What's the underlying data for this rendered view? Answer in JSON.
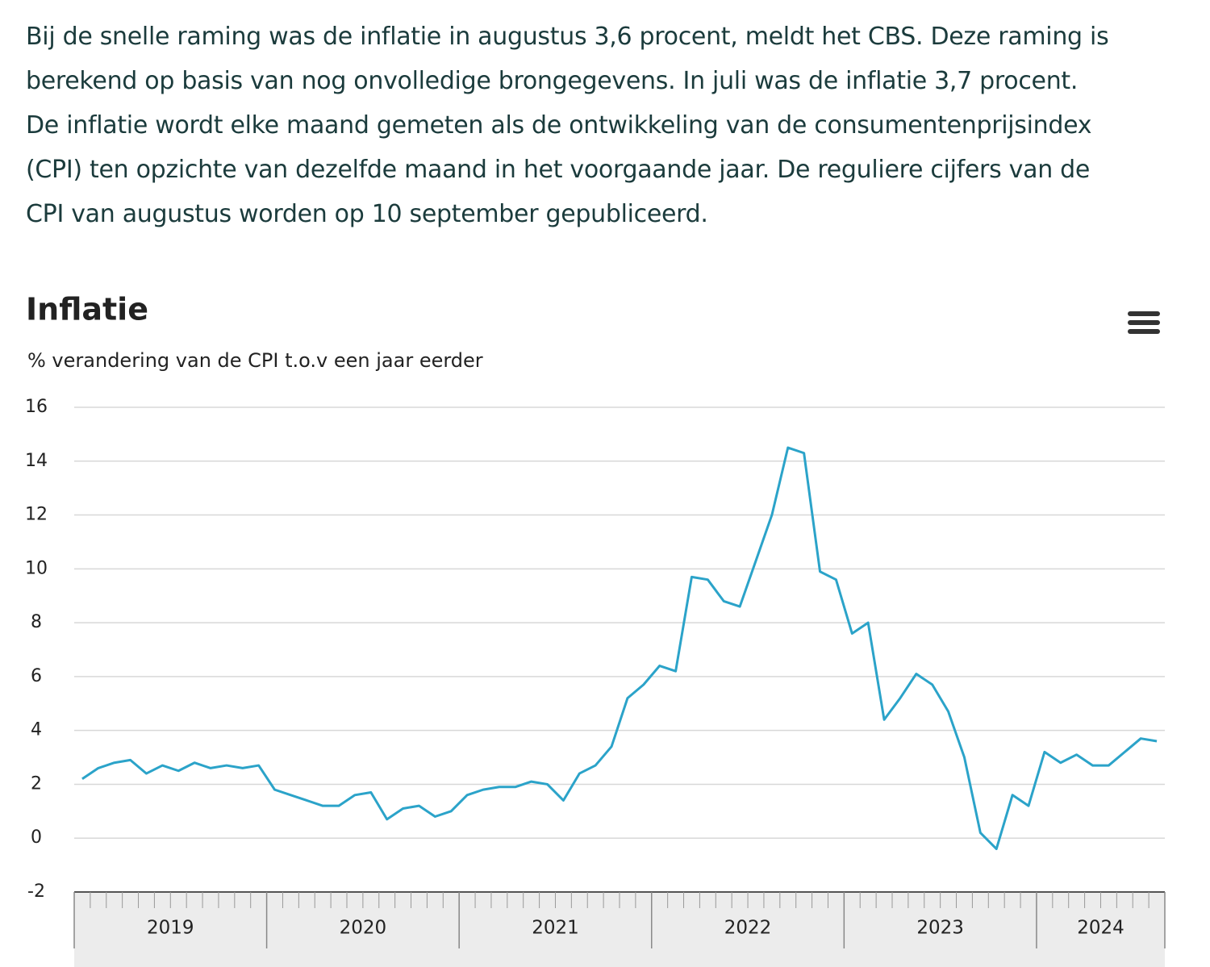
{
  "paragraph": [
    "Bij de snelle raming was de inflatie in augustus 3,6 procent, meldt het CBS. Deze raming is",
    "berekend op basis van nog onvolledige brongegevens. In juli was de inflatie 3,7 procent.",
    "De inflatie wordt elke maand gemeten als de ontwikkeling van de consumentenprijsindex",
    "(CPI) ten opzichte van dezelfde maand in het voorgaande jaar. De reguliere cijfers van de",
    "CPI van augustus worden op 10 september gepubliceerd."
  ],
  "chart_data": {
    "type": "line",
    "title": "Inflatie",
    "subtitle": "% verandering van de CPI t.o.v een jaar eerder",
    "categories": [
      null,
      null,
      null,
      null,
      null,
      null,
      null,
      null,
      null,
      null,
      null,
      null,
      null,
      null,
      null,
      null,
      null,
      null,
      null,
      null,
      null,
      null,
      null,
      null,
      null,
      null,
      null,
      null,
      null,
      null,
      null,
      null,
      null,
      null,
      null,
      null,
      null,
      null,
      null,
      null,
      null,
      null,
      null,
      null,
      null,
      null,
      null,
      null,
      null,
      null,
      null,
      null,
      null,
      null,
      null,
      null,
      null,
      null,
      null,
      null,
      null,
      null,
      null,
      null,
      null,
      null,
      null,
      null
    ],
    "year_labels": [
      "2019",
      "2020",
      "2021",
      "2022",
      "2023",
      "2024"
    ],
    "series": [
      {
        "name": "Inflatie",
        "color": "#2ba3c9",
        "values": [
          2.2,
          2.6,
          2.8,
          2.9,
          2.4,
          2.7,
          2.5,
          2.8,
          2.6,
          2.7,
          2.6,
          2.7,
          1.8,
          1.6,
          1.4,
          1.2,
          1.2,
          1.6,
          1.7,
          0.7,
          1.1,
          1.2,
          0.8,
          1.0,
          1.6,
          1.8,
          1.9,
          1.9,
          2.1,
          2.0,
          1.4,
          2.4,
          2.7,
          3.4,
          5.2,
          5.7,
          6.4,
          6.2,
          9.7,
          9.6,
          8.8,
          8.6,
          10.3,
          12.0,
          14.5,
          14.3,
          9.9,
          9.6,
          7.6,
          8.0,
          4.4,
          5.2,
          6.1,
          5.7,
          4.7,
          3.0,
          0.2,
          -0.4,
          1.6,
          1.2,
          3.2,
          2.8,
          3.1,
          2.7,
          2.7,
          3.2,
          3.7,
          3.6
        ]
      }
    ],
    "ylim": [
      -2,
      16
    ],
    "yticks": [
      -2,
      0,
      2,
      4,
      6,
      8,
      10,
      12,
      14,
      16
    ],
    "grid": true
  }
}
